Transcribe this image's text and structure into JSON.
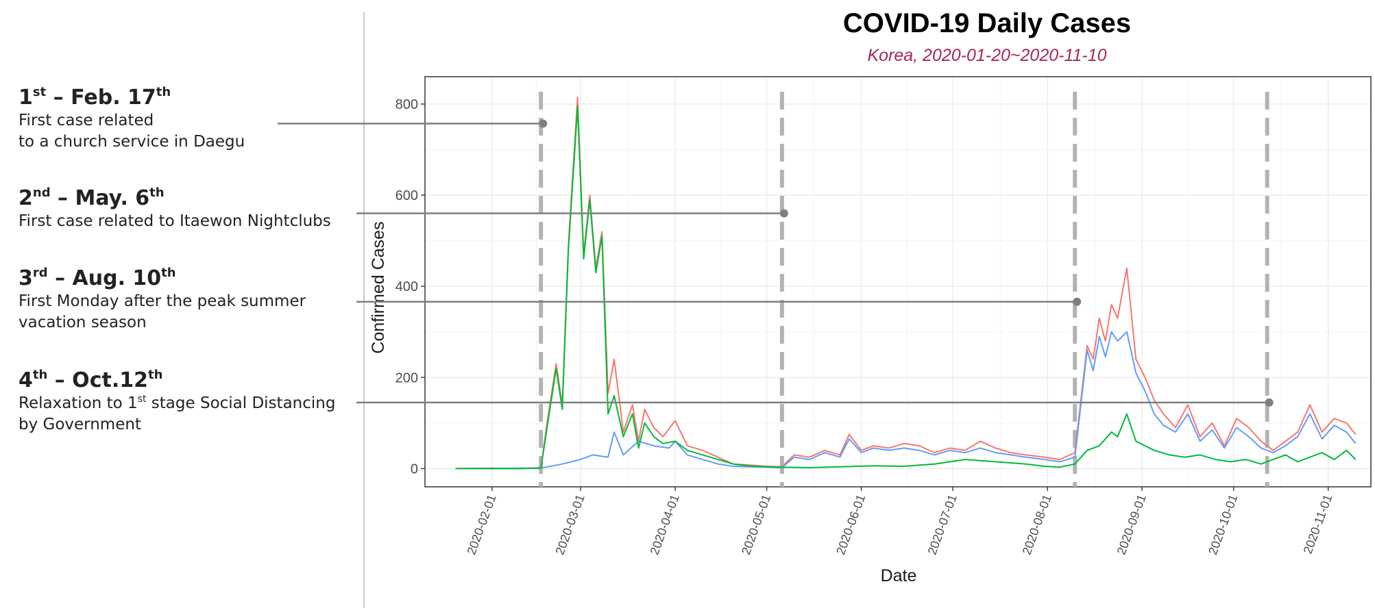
{
  "colors": {
    "series_red": "#F8766D",
    "series_blue": "#619CFF",
    "series_green": "#00BA38",
    "event_line": "#b3b3b3",
    "pointer": "#7f7f7f",
    "subtitle": "#A7255A"
  },
  "events": [
    {
      "ord": "1",
      "ord_suffix": "st",
      "sep": " – Feb. 17",
      "day_suffix": "th",
      "body_lines": [
        "First case related",
        "to a church service in Daegu"
      ]
    },
    {
      "ord": "2",
      "ord_suffix": "nd",
      "sep": " – May. 6",
      "day_suffix": "th",
      "body_lines": [
        "First case related to Itaewon Nightclubs"
      ]
    },
    {
      "ord": "3",
      "ord_suffix": "rd",
      "sep": " – Aug. 10",
      "day_suffix": "th",
      "body_lines": [
        "First Monday after the peak summer",
        "vacation season"
      ]
    },
    {
      "ord": "4",
      "ord_suffix": "th",
      "sep": " – Oct.12",
      "day_suffix": "th",
      "body_pre": "Relaxation to 1",
      "body_sup": "st",
      "body_post": " stage Social Distancing",
      "body_lines": [
        "by Government"
      ]
    }
  ],
  "chart_data": {
    "type": "line",
    "title": "COVID-19 Daily Cases",
    "subtitle": "Korea, 2020-01-20~2020-11-10",
    "xlabel": "Date",
    "ylabel": "Confirmed Cases",
    "xlim": [
      "2020-01-10",
      "2020-11-15"
    ],
    "ylim": [
      -40,
      860
    ],
    "grid": true,
    "x_ticks": [
      "2020-02-01",
      "2020-03-01",
      "2020-04-01",
      "2020-05-01",
      "2020-06-01",
      "2020-07-01",
      "2020-08-01",
      "2020-09-01",
      "2020-10-01",
      "2020-11-01"
    ],
    "y_ticks": [
      0,
      200,
      400,
      600,
      800
    ],
    "event_dates": [
      "2020-02-17",
      "2020-05-06",
      "2020-08-10",
      "2020-10-12"
    ],
    "event_marker_values": [
      757,
      560,
      366,
      145
    ],
    "series": [
      {
        "color": "#F8766D",
        "x": [
          "2020-01-20",
          "2020-02-01",
          "2020-02-10",
          "2020-02-17",
          "2020-02-19",
          "2020-02-22",
          "2020-02-24",
          "2020-02-26",
          "2020-02-29",
          "2020-03-02",
          "2020-03-04",
          "2020-03-06",
          "2020-03-08",
          "2020-03-10",
          "2020-03-12",
          "2020-03-15",
          "2020-03-18",
          "2020-03-20",
          "2020-03-22",
          "2020-03-25",
          "2020-03-28",
          "2020-04-01",
          "2020-04-05",
          "2020-04-10",
          "2020-04-15",
          "2020-04-20",
          "2020-04-25",
          "2020-05-01",
          "2020-05-06",
          "2020-05-10",
          "2020-05-15",
          "2020-05-20",
          "2020-05-25",
          "2020-05-28",
          "2020-06-01",
          "2020-06-05",
          "2020-06-10",
          "2020-06-15",
          "2020-06-20",
          "2020-06-25",
          "2020-06-30",
          "2020-07-05",
          "2020-07-10",
          "2020-07-15",
          "2020-07-20",
          "2020-07-25",
          "2020-07-31",
          "2020-08-05",
          "2020-08-10",
          "2020-08-14",
          "2020-08-16",
          "2020-08-18",
          "2020-08-20",
          "2020-08-22",
          "2020-08-24",
          "2020-08-27",
          "2020-08-30",
          "2020-09-02",
          "2020-09-05",
          "2020-09-08",
          "2020-09-12",
          "2020-09-16",
          "2020-09-20",
          "2020-09-24",
          "2020-09-28",
          "2020-10-02",
          "2020-10-06",
          "2020-10-10",
          "2020-10-14",
          "2020-10-18",
          "2020-10-22",
          "2020-10-26",
          "2020-10-30",
          "2020-11-03",
          "2020-11-07",
          "2020-11-10"
        ],
        "y": [
          0,
          1,
          0,
          2,
          100,
          230,
          140,
          490,
          815,
          470,
          600,
          440,
          520,
          165,
          240,
          80,
          140,
          60,
          130,
          90,
          70,
          105,
          50,
          40,
          25,
          10,
          8,
          5,
          4,
          30,
          25,
          40,
          30,
          75,
          40,
          50,
          45,
          55,
          50,
          35,
          45,
          40,
          60,
          45,
          35,
          30,
          25,
          20,
          35,
          270,
          240,
          330,
          280,
          360,
          330,
          440,
          240,
          200,
          150,
          120,
          90,
          140,
          70,
          100,
          50,
          110,
          90,
          60,
          40,
          60,
          80,
          140,
          80,
          110,
          100,
          75
        ]
      },
      {
        "color": "#619CFF",
        "x": [
          "2020-01-20",
          "2020-02-01",
          "2020-02-10",
          "2020-02-17",
          "2020-02-24",
          "2020-03-01",
          "2020-03-05",
          "2020-03-10",
          "2020-03-12",
          "2020-03-15",
          "2020-03-20",
          "2020-03-25",
          "2020-03-30",
          "2020-04-01",
          "2020-04-05",
          "2020-04-10",
          "2020-04-15",
          "2020-04-20",
          "2020-04-25",
          "2020-05-01",
          "2020-05-06",
          "2020-05-10",
          "2020-05-15",
          "2020-05-20",
          "2020-05-25",
          "2020-05-28",
          "2020-06-01",
          "2020-06-05",
          "2020-06-10",
          "2020-06-15",
          "2020-06-20",
          "2020-06-25",
          "2020-06-30",
          "2020-07-05",
          "2020-07-10",
          "2020-07-15",
          "2020-07-20",
          "2020-07-25",
          "2020-07-31",
          "2020-08-05",
          "2020-08-10",
          "2020-08-14",
          "2020-08-16",
          "2020-08-18",
          "2020-08-20",
          "2020-08-22",
          "2020-08-24",
          "2020-08-27",
          "2020-08-30",
          "2020-09-02",
          "2020-09-05",
          "2020-09-08",
          "2020-09-12",
          "2020-09-16",
          "2020-09-20",
          "2020-09-24",
          "2020-09-28",
          "2020-10-02",
          "2020-10-06",
          "2020-10-10",
          "2020-10-14",
          "2020-10-18",
          "2020-10-22",
          "2020-10-26",
          "2020-10-30",
          "2020-11-03",
          "2020-11-07",
          "2020-11-10"
        ],
        "y": [
          0,
          0,
          1,
          1,
          10,
          20,
          30,
          25,
          80,
          30,
          60,
          50,
          45,
          60,
          30,
          20,
          10,
          5,
          4,
          3,
          2,
          25,
          20,
          35,
          25,
          65,
          35,
          45,
          40,
          45,
          40,
          30,
          40,
          35,
          45,
          35,
          30,
          25,
          20,
          15,
          25,
          260,
          215,
          290,
          245,
          300,
          280,
          300,
          210,
          170,
          120,
          95,
          80,
          120,
          60,
          85,
          45,
          90,
          70,
          45,
          35,
          50,
          70,
          120,
          65,
          95,
          80,
          55
        ]
      },
      {
        "color": "#00BA38",
        "x": [
          "2020-01-20",
          "2020-02-10",
          "2020-02-17",
          "2020-02-19",
          "2020-02-22",
          "2020-02-24",
          "2020-02-26",
          "2020-02-29",
          "2020-03-02",
          "2020-03-04",
          "2020-03-06",
          "2020-03-08",
          "2020-03-10",
          "2020-03-12",
          "2020-03-15",
          "2020-03-18",
          "2020-03-20",
          "2020-03-22",
          "2020-03-25",
          "2020-03-28",
          "2020-04-01",
          "2020-04-05",
          "2020-04-10",
          "2020-04-15",
          "2020-04-20",
          "2020-04-25",
          "2020-05-01",
          "2020-05-06",
          "2020-05-15",
          "2020-05-25",
          "2020-06-05",
          "2020-06-15",
          "2020-06-25",
          "2020-07-05",
          "2020-07-15",
          "2020-07-25",
          "2020-07-31",
          "2020-08-05",
          "2020-08-10",
          "2020-08-14",
          "2020-08-18",
          "2020-08-22",
          "2020-08-24",
          "2020-08-27",
          "2020-08-30",
          "2020-09-05",
          "2020-09-10",
          "2020-09-15",
          "2020-09-20",
          "2020-09-25",
          "2020-09-30",
          "2020-10-05",
          "2020-10-10",
          "2020-10-14",
          "2020-10-18",
          "2020-10-22",
          "2020-10-26",
          "2020-10-30",
          "2020-11-03",
          "2020-11-07",
          "2020-11-10"
        ],
        "y": [
          0,
          0,
          1,
          90,
          220,
          130,
          480,
          795,
          460,
          590,
          430,
          510,
          120,
          160,
          70,
          120,
          45,
          100,
          70,
          55,
          60,
          40,
          30,
          20,
          10,
          6,
          4,
          3,
          2,
          4,
          6,
          5,
          10,
          20,
          15,
          10,
          5,
          3,
          10,
          40,
          50,
          80,
          70,
          120,
          60,
          40,
          30,
          25,
          30,
          20,
          15,
          20,
          10,
          20,
          30,
          15,
          25,
          35,
          20,
          40,
          20
        ]
      }
    ]
  }
}
